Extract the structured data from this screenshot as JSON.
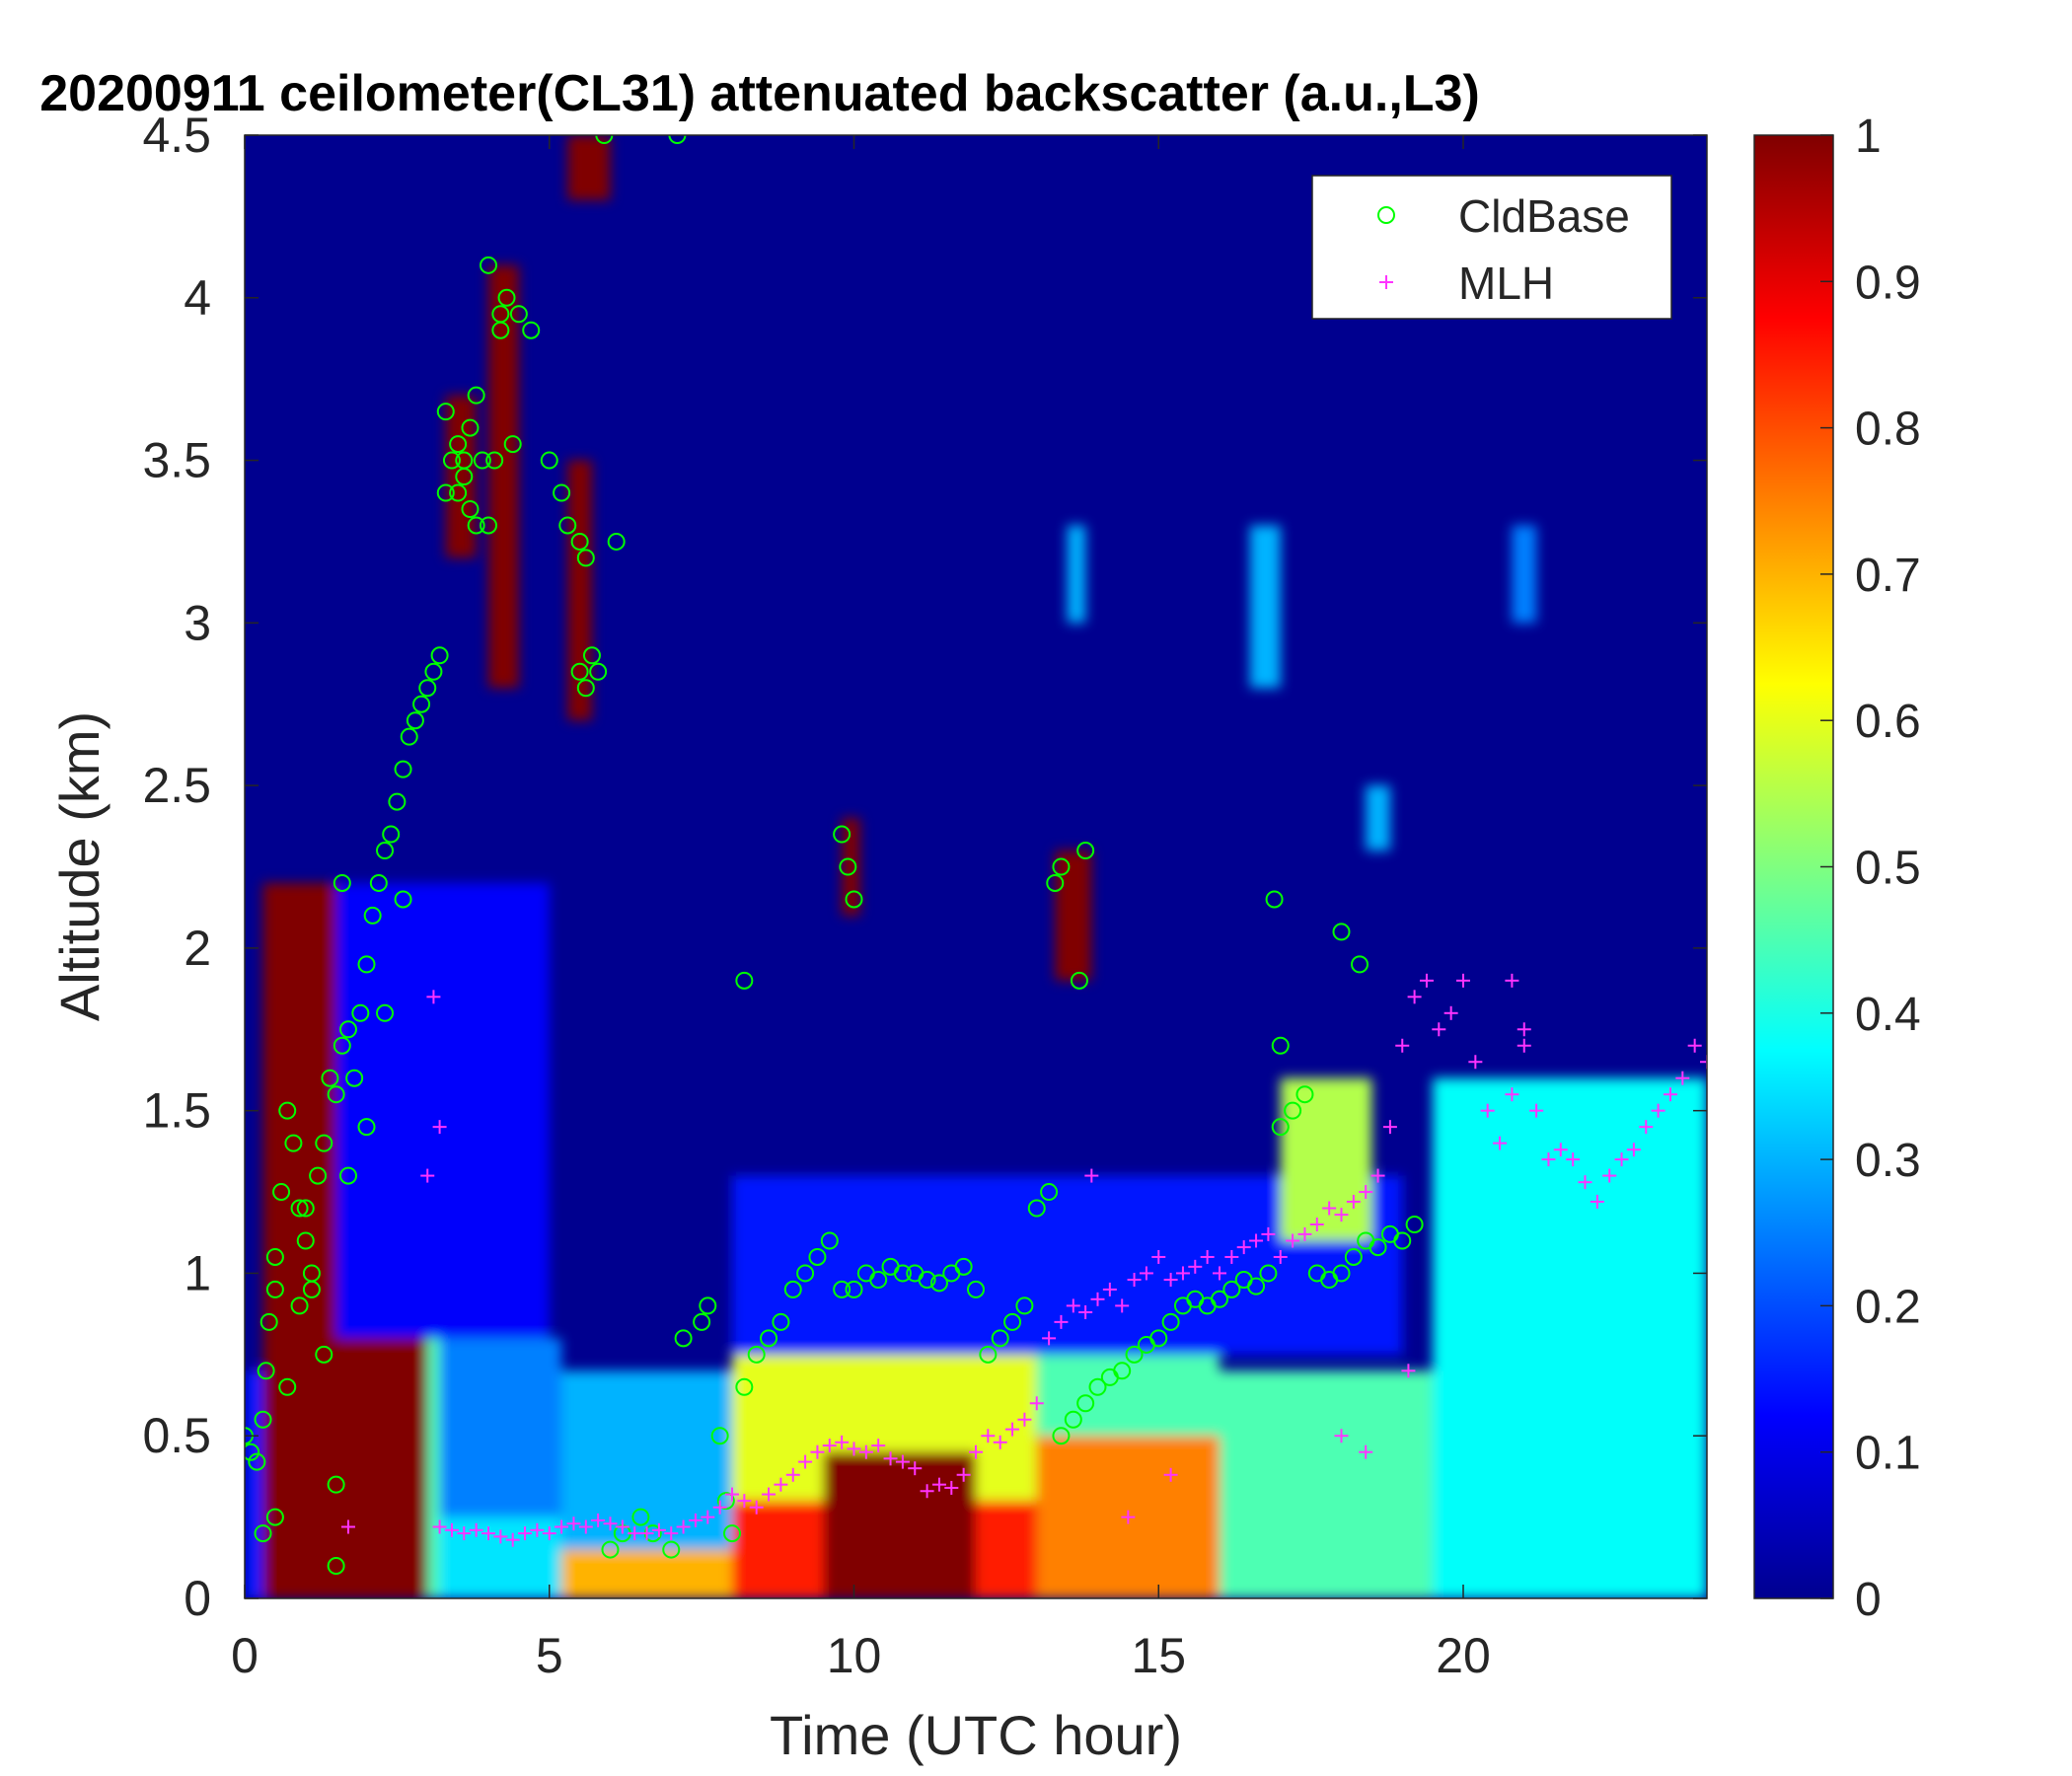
{
  "chart_data": {
    "type": "heatmap",
    "title": "20200911 ceilometer(CL31) attenuated backscatter (a.u.,L3)",
    "xlabel": "Time (UTC hour)",
    "ylabel": "Altitude (km)",
    "xlim": [
      0,
      24
    ],
    "ylim": [
      0,
      4.5
    ],
    "x_ticks": [
      "0",
      "5",
      "10",
      "15",
      "20"
    ],
    "y_ticks": [
      "0",
      "0.5",
      "1",
      "1.5",
      "2",
      "2.5",
      "3",
      "3.5",
      "4",
      "4.5"
    ],
    "colorbar": {
      "colormap": "jet",
      "range": [
        0,
        1
      ],
      "ticks": [
        "0",
        "0.1",
        "0.2",
        "0.3",
        "0.4",
        "0.5",
        "0.6",
        "0.7",
        "0.8",
        "0.9",
        "1"
      ]
    },
    "legend": {
      "placement": "top-right",
      "entries": [
        "CldBase",
        "MLH"
      ]
    },
    "background_regions": [
      {
        "t0": 0.0,
        "t1": 0.3,
        "z0": 0.0,
        "z1": 0.7,
        "v": 0.15
      },
      {
        "t0": 0.3,
        "t1": 3.0,
        "z0": 0.0,
        "z1": 2.2,
        "v": 1.0
      },
      {
        "t0": 3.0,
        "t1": 3.2,
        "z0": 0.0,
        "z1": 1.8,
        "v": 0.45
      },
      {
        "t0": 3.2,
        "t1": 5.2,
        "z0": 0.0,
        "z1": 0.25,
        "v": 0.35
      },
      {
        "t0": 3.2,
        "t1": 5.2,
        "z0": 0.25,
        "z1": 0.8,
        "v": 0.25
      },
      {
        "t0": 5.2,
        "t1": 8.0,
        "z0": 0.0,
        "z1": 0.15,
        "v": 0.7
      },
      {
        "t0": 5.2,
        "t1": 8.0,
        "z0": 0.15,
        "z1": 0.7,
        "v": 0.3
      },
      {
        "t0": 8.0,
        "t1": 13.0,
        "z0": 0.0,
        "z1": 0.3,
        "v": 0.85
      },
      {
        "t0": 8.0,
        "t1": 13.0,
        "z0": 0.3,
        "z1": 0.75,
        "v": 0.6
      },
      {
        "t0": 9.5,
        "t1": 12.0,
        "z0": 0.0,
        "z1": 0.45,
        "v": 1.0
      },
      {
        "t0": 13.0,
        "t1": 16.0,
        "z0": 0.0,
        "z1": 0.5,
        "v": 0.75
      },
      {
        "t0": 13.0,
        "t1": 16.0,
        "z0": 0.5,
        "z1": 0.85,
        "v": 0.45
      },
      {
        "t0": 16.0,
        "t1": 19.5,
        "z0": 0.0,
        "z1": 0.7,
        "v": 0.45
      },
      {
        "t0": 19.5,
        "t1": 24.0,
        "z0": 0.0,
        "z1": 1.6,
        "v": 0.38
      },
      {
        "t0": 1.5,
        "t1": 5.0,
        "z0": 0.8,
        "z1": 2.2,
        "v": 0.12
      },
      {
        "t0": 8.0,
        "t1": 19.0,
        "z0": 0.75,
        "z1": 1.3,
        "v": 0.15
      },
      {
        "t0": 17.0,
        "t1": 18.5,
        "z0": 1.1,
        "z1": 1.6,
        "v": 0.55
      },
      {
        "t0": 3.3,
        "t1": 3.8,
        "z0": 3.2,
        "z1": 3.7,
        "v": 1.0
      },
      {
        "t0": 4.0,
        "t1": 4.5,
        "z0": 2.8,
        "z1": 4.1,
        "v": 1.0
      },
      {
        "t0": 5.3,
        "t1": 5.7,
        "z0": 2.7,
        "z1": 3.5,
        "v": 1.0
      },
      {
        "t0": 5.3,
        "t1": 6.0,
        "z0": 4.3,
        "z1": 4.5,
        "v": 1.0
      },
      {
        "t0": 13.3,
        "t1": 13.9,
        "z0": 1.9,
        "z1": 2.3,
        "v": 1.0
      },
      {
        "t0": 9.8,
        "t1": 10.1,
        "z0": 2.1,
        "z1": 2.4,
        "v": 1.0
      },
      {
        "t0": 13.5,
        "t1": 13.8,
        "z0": 3.0,
        "z1": 3.3,
        "v": 0.3
      },
      {
        "t0": 16.5,
        "t1": 17.0,
        "z0": 2.8,
        "z1": 3.3,
        "v": 0.3
      },
      {
        "t0": 18.4,
        "t1": 18.8,
        "z0": 2.3,
        "z1": 2.5,
        "v": 0.3
      },
      {
        "t0": 20.8,
        "t1": 21.2,
        "z0": 3.0,
        "z1": 3.3,
        "v": 0.25
      }
    ],
    "series": [
      {
        "name": "CldBase",
        "marker": "circle",
        "color": "#00ff00",
        "x": [
          0.0,
          0.1,
          0.2,
          0.3,
          0.35,
          0.4,
          0.5,
          0.6,
          0.7,
          0.8,
          0.9,
          1.0,
          1.1,
          1.2,
          1.3,
          1.4,
          1.5,
          1.6,
          1.7,
          1.8,
          1.9,
          2.0,
          2.1,
          2.2,
          2.3,
          2.4,
          2.5,
          2.6,
          2.7,
          2.8,
          2.9,
          3.0,
          3.1,
          3.2,
          3.3,
          3.4,
          3.5,
          3.6,
          3.7,
          3.8,
          3.9,
          4.0,
          4.1,
          4.2,
          4.3,
          4.5,
          4.7,
          5.0,
          5.2,
          5.3,
          5.5,
          5.6,
          5.7,
          5.8,
          6.0,
          6.2,
          6.5,
          6.7,
          7.0,
          7.2,
          7.5,
          7.6,
          7.8,
          7.9,
          8.0,
          8.2,
          8.4,
          8.6,
          8.8,
          9.0,
          9.2,
          9.4,
          9.6,
          9.8,
          10.0,
          10.2,
          10.4,
          10.6,
          10.8,
          11.0,
          11.2,
          11.4,
          11.6,
          11.8,
          12.0,
          12.2,
          12.4,
          12.6,
          12.8,
          13.0,
          13.2,
          13.4,
          13.6,
          13.8,
          14.0,
          14.2,
          14.4,
          14.6,
          14.8,
          15.0,
          15.2,
          15.4,
          15.6,
          15.8,
          16.0,
          16.2,
          16.4,
          16.6,
          16.8,
          17.0,
          17.2,
          17.4,
          17.6,
          17.8,
          18.0,
          18.2,
          18.4,
          18.6,
          18.8,
          19.0,
          19.2,
          0.3,
          0.5,
          0.7,
          0.9,
          1.1,
          1.3,
          1.5,
          1.7,
          2.0,
          2.3,
          2.6,
          0.5,
          1.0,
          1.5,
          1.6,
          3.3,
          3.5,
          3.6,
          3.7,
          3.8,
          4.0,
          4.2,
          4.4,
          5.5,
          5.6,
          6.1,
          9.8,
          9.9,
          10.0,
          13.3,
          13.4,
          13.7,
          13.8,
          16.9,
          17.0,
          18.0,
          18.3,
          8.2,
          5.9,
          7.1
        ],
        "y": [
          0.5,
          0.45,
          0.42,
          0.55,
          0.7,
          0.85,
          1.05,
          1.25,
          1.5,
          1.4,
          1.2,
          1.1,
          1.0,
          1.3,
          1.4,
          1.6,
          1.55,
          1.7,
          1.75,
          1.6,
          1.8,
          1.95,
          2.1,
          2.2,
          2.3,
          2.35,
          2.45,
          2.55,
          2.65,
          2.7,
          2.75,
          2.8,
          2.85,
          2.9,
          3.4,
          3.5,
          3.55,
          3.45,
          3.6,
          3.7,
          3.5,
          3.3,
          3.5,
          3.9,
          4.0,
          3.95,
          3.9,
          3.5,
          3.4,
          3.3,
          3.25,
          3.2,
          2.9,
          2.85,
          0.15,
          0.2,
          0.25,
          0.2,
          0.15,
          0.8,
          0.85,
          0.9,
          0.5,
          0.3,
          0.2,
          0.65,
          0.75,
          0.8,
          0.85,
          0.95,
          1.0,
          1.05,
          1.1,
          0.95,
          0.95,
          1.0,
          0.98,
          1.02,
          1.0,
          1.0,
          0.98,
          0.97,
          1.0,
          1.02,
          0.95,
          0.75,
          0.8,
          0.85,
          0.9,
          1.2,
          1.25,
          0.5,
          0.55,
          0.6,
          0.65,
          0.68,
          0.7,
          0.75,
          0.78,
          0.8,
          0.85,
          0.9,
          0.92,
          0.9,
          0.92,
          0.95,
          0.98,
          0.96,
          1.0,
          1.45,
          1.5,
          1.55,
          1.0,
          0.98,
          1.0,
          1.05,
          1.1,
          1.08,
          1.12,
          1.1,
          1.15,
          0.2,
          0.25,
          0.65,
          0.9,
          0.95,
          0.75,
          0.1,
          1.3,
          1.45,
          1.8,
          2.15,
          0.95,
          1.2,
          0.35,
          2.2,
          3.65,
          3.4,
          3.5,
          3.35,
          3.3,
          4.1,
          3.95,
          3.55,
          2.85,
          2.8,
          3.25,
          2.35,
          2.25,
          2.15,
          2.2,
          2.25,
          1.9,
          2.3,
          2.15,
          1.7,
          2.05,
          1.95,
          1.9,
          4.5,
          4.5
        ],
        "r": 0.045
      },
      {
        "name": "MLH",
        "marker": "plus",
        "color": "#ff33ff",
        "x": [
          3.2,
          3.4,
          3.6,
          3.8,
          4.0,
          4.2,
          4.4,
          4.6,
          4.8,
          5.0,
          5.2,
          5.4,
          5.6,
          5.8,
          6.0,
          6.2,
          6.4,
          6.6,
          6.8,
          7.0,
          7.2,
          7.4,
          7.6,
          7.8,
          8.0,
          8.2,
          8.4,
          8.6,
          8.8,
          9.0,
          9.2,
          9.4,
          9.6,
          9.8,
          10.0,
          10.2,
          10.4,
          10.6,
          10.8,
          11.0,
          11.2,
          11.4,
          11.6,
          11.8,
          12.0,
          12.2,
          12.4,
          12.6,
          12.8,
          13.0,
          13.2,
          13.4,
          13.6,
          13.8,
          14.0,
          14.2,
          14.4,
          14.6,
          14.8,
          15.0,
          15.2,
          15.4,
          15.6,
          15.8,
          16.0,
          16.2,
          16.4,
          16.6,
          16.8,
          17.0,
          17.2,
          17.4,
          17.6,
          17.8,
          18.0,
          18.2,
          18.4,
          18.6,
          18.8,
          19.0,
          19.2,
          19.4,
          19.6,
          19.8,
          20.0,
          20.2,
          20.4,
          20.6,
          20.8,
          21.0,
          21.2,
          21.4,
          21.6,
          21.8,
          22.0,
          22.2,
          22.4,
          22.6,
          22.8,
          23.0,
          23.2,
          23.4,
          23.6,
          23.8,
          24.0,
          3.1,
          3.2,
          3.0,
          14.5,
          15.2,
          18.0,
          18.4,
          19.1,
          20.8,
          21.0,
          1.7,
          13.9
        ],
        "y": [
          0.22,
          0.21,
          0.2,
          0.21,
          0.2,
          0.19,
          0.18,
          0.2,
          0.21,
          0.2,
          0.22,
          0.23,
          0.22,
          0.24,
          0.23,
          0.22,
          0.2,
          0.2,
          0.21,
          0.2,
          0.22,
          0.24,
          0.25,
          0.28,
          0.32,
          0.3,
          0.28,
          0.32,
          0.35,
          0.38,
          0.42,
          0.45,
          0.47,
          0.48,
          0.46,
          0.45,
          0.47,
          0.43,
          0.42,
          0.4,
          0.33,
          0.35,
          0.34,
          0.38,
          0.45,
          0.5,
          0.48,
          0.52,
          0.55,
          0.6,
          0.8,
          0.85,
          0.9,
          0.88,
          0.92,
          0.95,
          0.9,
          0.98,
          1.0,
          1.05,
          0.98,
          1.0,
          1.02,
          1.05,
          1.0,
          1.05,
          1.08,
          1.1,
          1.12,
          1.05,
          1.1,
          1.12,
          1.15,
          1.2,
          1.18,
          1.22,
          1.25,
          1.3,
          1.45,
          1.7,
          1.85,
          1.9,
          1.75,
          1.8,
          1.9,
          1.65,
          1.5,
          1.4,
          1.55,
          1.7,
          1.5,
          1.35,
          1.38,
          1.35,
          1.28,
          1.22,
          1.3,
          1.35,
          1.38,
          1.45,
          1.5,
          1.55,
          1.6,
          1.7,
          1.65,
          1.85,
          1.45,
          1.3,
          0.25,
          0.38,
          0.5,
          0.45,
          0.7,
          1.9,
          1.75,
          0.22,
          1.3
        ]
      }
    ]
  }
}
